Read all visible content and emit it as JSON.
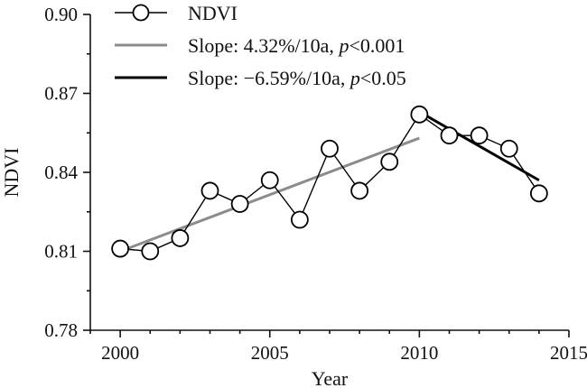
{
  "chart_data": {
    "type": "line",
    "xlabel": "Year",
    "ylabel": "NDVI",
    "xlim": [
      1999,
      2015
    ],
    "ylim": [
      0.78,
      0.9
    ],
    "x_ticks": [
      2000,
      2005,
      2010,
      2015
    ],
    "y_ticks": [
      0.78,
      0.81,
      0.84,
      0.87,
      0.9
    ],
    "x_tick_labels": [
      "2000",
      "2005",
      "2010",
      "2015"
    ],
    "y_tick_labels": [
      "0.78",
      "0.81",
      "0.84",
      "0.87",
      "0.90"
    ],
    "legend_position": "top-left",
    "grid": false,
    "series": [
      {
        "name": "NDVI",
        "style": "line-with-open-circles",
        "color": "#000000",
        "x": [
          2000,
          2001,
          2002,
          2003,
          2004,
          2005,
          2006,
          2007,
          2008,
          2009,
          2010,
          2011,
          2012,
          2013,
          2014
        ],
        "y": [
          0.811,
          0.81,
          0.815,
          0.833,
          0.828,
          0.837,
          0.822,
          0.849,
          0.833,
          0.844,
          0.862,
          0.854,
          0.854,
          0.849,
          0.832
        ]
      }
    ],
    "trend_lines": [
      {
        "label": "Slope: 4.32%/10a, p<0.001",
        "label_prefix": "Slope: 4.32%/10a, ",
        "label_p": "p",
        "label_suffix": "<0.001",
        "color": "#8c8c8c",
        "x": [
          2000,
          2010
        ],
        "y": [
          0.81,
          0.853
        ]
      },
      {
        "label": "Slope: −6.59%/10a, p<0.05",
        "label_prefix": "Slope: −6.59%/10a, ",
        "label_p": "p",
        "label_suffix": "<0.05",
        "color": "#000000",
        "x": [
          2010,
          2014
        ],
        "y": [
          0.863,
          0.837
        ]
      }
    ]
  }
}
